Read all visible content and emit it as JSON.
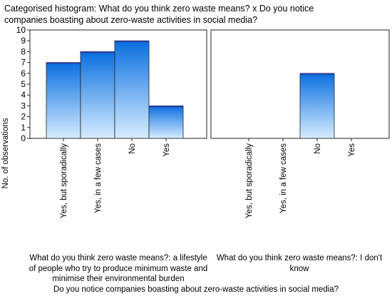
{
  "title": "Categorised histogram: What do you think zero waste means? x Do you notice companies boasting about zero-waste activities in social media?",
  "chart_data": {
    "type": "bar",
    "title": "Categorised histogram: What do you think zero waste means? x Do you notice companies boasting about zero-waste activities in social media?",
    "ylabel": "No. of observations",
    "xlabel": "Do you notice companies boasting about zero-waste activities in social media?",
    "ylim": [
      0,
      10
    ],
    "yticks": [
      0,
      1,
      2,
      3,
      4,
      5,
      6,
      7,
      8,
      9,
      10
    ],
    "categories": [
      "Yes, but sporadically",
      "Yes, in a few cases",
      "No",
      "Yes"
    ],
    "panels": [
      {
        "label": "What do you think zero waste means?: a lifestyle of people who try to produce minimum waste and minimise their environmental burden",
        "values": [
          7,
          8,
          9,
          3
        ]
      },
      {
        "label": "What do you think zero waste means?: I don't know",
        "values": [
          0,
          0,
          6,
          0
        ]
      }
    ],
    "grid": false,
    "colors": {
      "bar_top": "#0a6fe0",
      "bar_bottom": "#d6ecff",
      "bar_cap": "#2b40b0",
      "outline": "#222222"
    }
  }
}
